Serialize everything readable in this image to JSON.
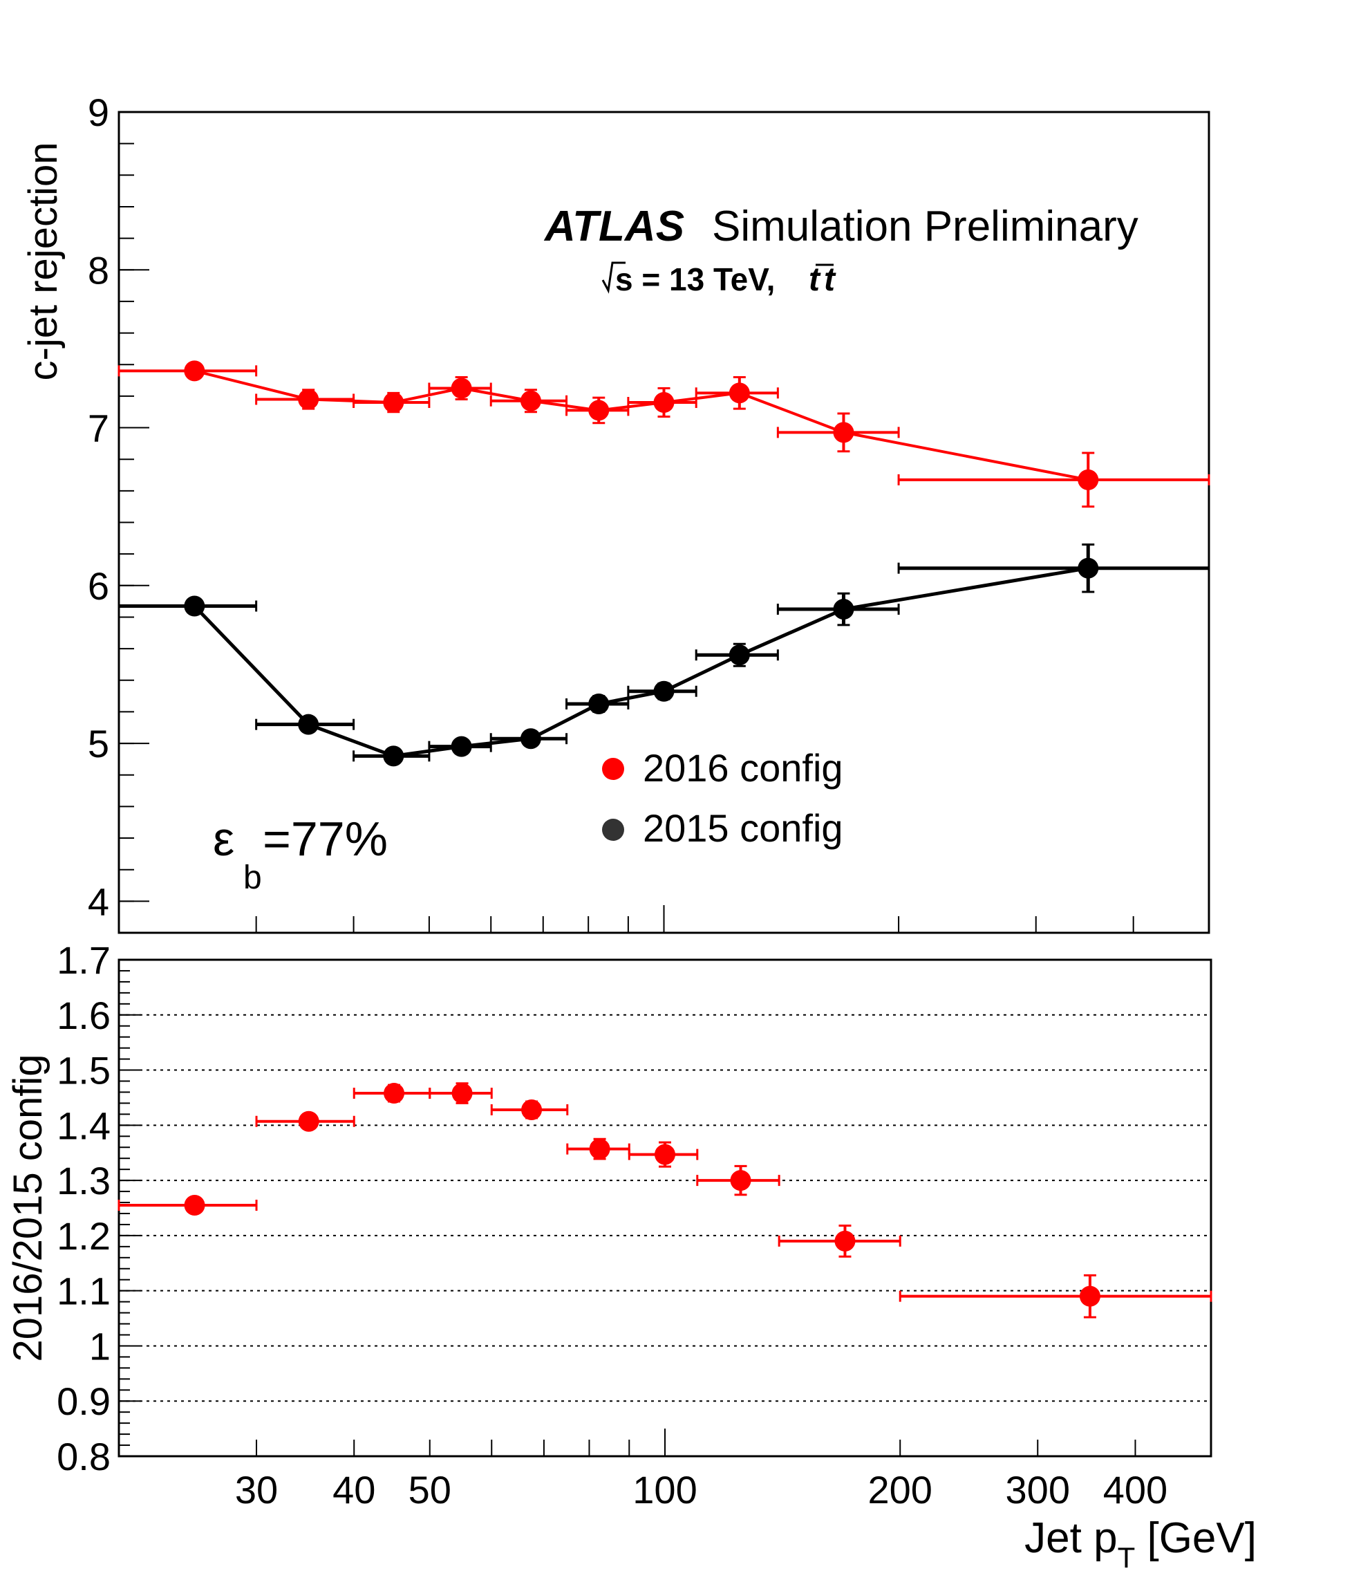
{
  "chart_data": [
    {
      "type": "scatter",
      "panel": "main",
      "title": "",
      "annotation": {
        "experiment": "ATLAS",
        "label": "Simulation Preliminary",
        "energy_prefix": "s = 13 TeV,",
        "process": "tt",
        "efficiency_symbol": "ε",
        "efficiency_subscript": "b",
        "efficiency_value": "=77%"
      },
      "ylabel": "c-jet rejection",
      "xlabel": "",
      "xscale": "log",
      "xlim": [
        20,
        500
      ],
      "ylim": [
        3.8,
        9
      ],
      "yticks": [
        "4",
        "5",
        "6",
        "7",
        "8",
        "9"
      ],
      "legend_placement": "center-right",
      "series": [
        {
          "name": "2016 config",
          "color": "#ff0000",
          "x": [
            25,
            35,
            45,
            55,
            67.5,
            82.5,
            100,
            125,
            170,
            350
          ],
          "x_low": [
            20,
            30,
            40,
            50,
            60,
            75,
            90,
            110,
            140,
            200
          ],
          "x_high": [
            30,
            40,
            50,
            60,
            75,
            90,
            110,
            140,
            200,
            500
          ],
          "y": [
            7.36,
            7.18,
            7.16,
            7.25,
            7.17,
            7.11,
            7.16,
            7.22,
            6.97,
            6.67
          ],
          "y_err": [
            0.02,
            0.06,
            0.06,
            0.07,
            0.07,
            0.08,
            0.09,
            0.1,
            0.12,
            0.17
          ]
        },
        {
          "name": "2015 config",
          "color": "#000000",
          "x": [
            25,
            35,
            45,
            55,
            67.5,
            82.5,
            100,
            125,
            170,
            350
          ],
          "x_low": [
            20,
            30,
            40,
            50,
            60,
            75,
            90,
            110,
            140,
            200
          ],
          "x_high": [
            30,
            40,
            50,
            60,
            75,
            90,
            110,
            140,
            200,
            500
          ],
          "y": [
            5.87,
            5.12,
            4.92,
            4.98,
            5.03,
            5.25,
            5.33,
            5.56,
            5.85,
            6.11
          ],
          "y_err": [
            0.02,
            0.03,
            0.03,
            0.03,
            0.04,
            0.05,
            0.05,
            0.07,
            0.1,
            0.15
          ]
        }
      ]
    },
    {
      "type": "scatter",
      "panel": "ratio",
      "title": "",
      "ylabel": "2016/2015 config",
      "xlabel_main": "Jet p",
      "xlabel_sub": "T",
      "xlabel_unit": " [GeV]",
      "xscale": "log",
      "xlim": [
        20,
        500
      ],
      "ylim": [
        0.8,
        1.7
      ],
      "yticks": [
        "0.8",
        "0.9",
        "1",
        "1.1",
        "1.2",
        "1.3",
        "1.4",
        "1.5",
        "1.6",
        "1.7"
      ],
      "xticks": [
        "30",
        "40",
        "50",
        "100",
        "200",
        "300",
        "400"
      ],
      "grid": "horizontal dotted",
      "series": [
        {
          "color": "#ff0000",
          "x": [
            25,
            35,
            45,
            55,
            67.5,
            82.5,
            100,
            125,
            170,
            350
          ],
          "x_low": [
            20,
            30,
            40,
            50,
            60,
            75,
            90,
            110,
            140,
            200
          ],
          "x_high": [
            30,
            40,
            50,
            60,
            75,
            90,
            110,
            140,
            200,
            500
          ],
          "y": [
            1.255,
            1.407,
            1.458,
            1.458,
            1.428,
            1.357,
            1.347,
            1.3,
            1.19,
            1.09
          ],
          "y_err": [
            0.005,
            0.01,
            0.015,
            0.018,
            0.015,
            0.018,
            0.022,
            0.026,
            0.028,
            0.038
          ]
        }
      ]
    }
  ]
}
